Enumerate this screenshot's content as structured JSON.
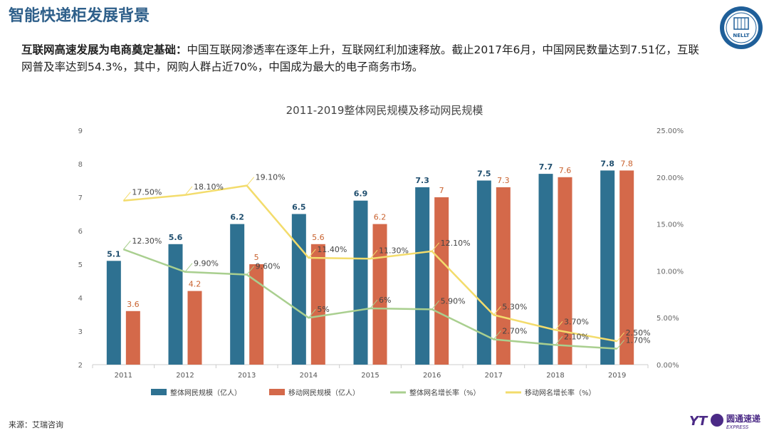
{
  "header": {
    "title": "智能快递柜发展背景",
    "intro_bold": "互联网高速发展为电商奠定基础：",
    "intro_text": "中国互联网渗透率在逐年上升，互联网红利加速释放。截止2017年6月，中国网民数量达到7.51亿，互联网普及率达到54.3%，其中，网购人群占近70%，中国成为最大的电子商务市场。"
  },
  "logo": {
    "icon": "nelt-seal-icon",
    "text": "NELLT"
  },
  "footer": {
    "source": "来源：艾瑞咨询",
    "brand": {
      "icon": "yto-logo-icon",
      "yt": "YT",
      "cn": "圆通速递",
      "en": "EXPRESS"
    }
  },
  "colors": {
    "teal": "#2e7191",
    "orange": "#d4694a",
    "green": "#a9cf8f",
    "yellow": "#f3dc6c",
    "title": "#2e5f8a"
  },
  "chart_data": {
    "type": "bar",
    "title": "2011-2019整体网民规模及移动网民规模",
    "categories": [
      "2011",
      "2012",
      "2013",
      "2014",
      "2015",
      "2016",
      "2017",
      "2018",
      "2019"
    ],
    "ylim": [
      2,
      9
    ],
    "y_ticks": [
      "2",
      "3",
      "4",
      "5",
      "6",
      "7",
      "8",
      "9"
    ],
    "y2lim": [
      0,
      25
    ],
    "y2_ticks": [
      "0.00%",
      "5.00%",
      "10.00%",
      "15.00%",
      "20.00%",
      "25.00%"
    ],
    "grid": false,
    "legend_position": "bottom",
    "series": [
      {
        "name": "整体网民规模（亿人）",
        "kind": "bar",
        "axis": "left",
        "color": "#2e7191",
        "values": [
          5.1,
          5.6,
          6.2,
          6.5,
          6.9,
          7.3,
          7.5,
          7.7,
          7.8
        ],
        "labels": [
          "5.1",
          "5.6",
          "6.2",
          "6.5",
          "6.9",
          "7.3",
          "7.5",
          "7.7",
          "7.8"
        ]
      },
      {
        "name": "移动网民规模（亿人）",
        "kind": "bar",
        "axis": "left",
        "color": "#d4694a",
        "values": [
          3.6,
          4.2,
          5.0,
          5.6,
          6.2,
          7.0,
          7.3,
          7.6,
          7.8
        ],
        "labels": [
          "3.6",
          "4.2",
          "5",
          "5.6",
          "6.2",
          "7",
          "7.3",
          "7.6",
          "7.8"
        ]
      },
      {
        "name": "整体网名增长率（%）",
        "kind": "line",
        "axis": "right",
        "color": "#a9cf8f",
        "values": [
          12.3,
          9.9,
          9.6,
          5.0,
          6.0,
          5.9,
          2.7,
          2.1,
          1.7
        ],
        "labels": [
          "12.30%",
          "9.90%",
          "9.60%",
          "5%",
          "6%",
          "5.90%",
          "2.70%",
          "2.10%",
          "1.70%"
        ]
      },
      {
        "name": "移动网名增长率（%）",
        "kind": "line",
        "axis": "right",
        "color": "#f3dc6c",
        "values": [
          17.5,
          18.1,
          19.1,
          11.4,
          11.3,
          12.1,
          5.3,
          3.7,
          2.5
        ],
        "labels": [
          "17.50%",
          "18.10%",
          "19.10%",
          "11.40%",
          "11.30%",
          "12.10%",
          "5.30%",
          "3.70%",
          "2.50%"
        ]
      }
    ]
  }
}
